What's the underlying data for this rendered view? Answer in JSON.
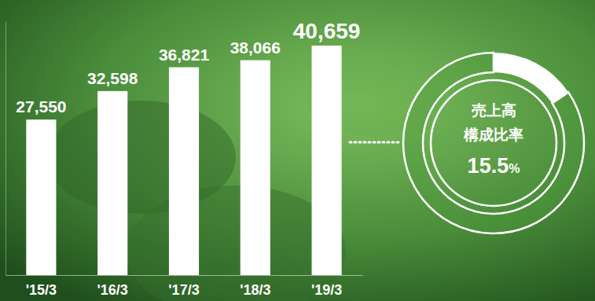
{
  "chart_data": [
    {
      "type": "bar",
      "categories": [
        "'15/3",
        "'16/3",
        "'17/3",
        "'18/3",
        "'19/3"
      ],
      "values": [
        27550,
        32598,
        36821,
        38066,
        40659
      ],
      "value_labels": [
        "27,550",
        "32,598",
        "36,821",
        "38,066",
        "40,659"
      ],
      "data_labels": true,
      "color": "#ffffff",
      "ylim": [
        0,
        45000
      ],
      "tick_labels": "x",
      "grid": false
    },
    {
      "type": "pie",
      "title": "売上高構成比率",
      "values": [
        15.5,
        84.5
      ],
      "value_labels": [
        "15.5%",
        null
      ],
      "data_labels": true,
      "colors": [
        "#ffffff",
        "#4e9a3c"
      ]
    }
  ]
}
